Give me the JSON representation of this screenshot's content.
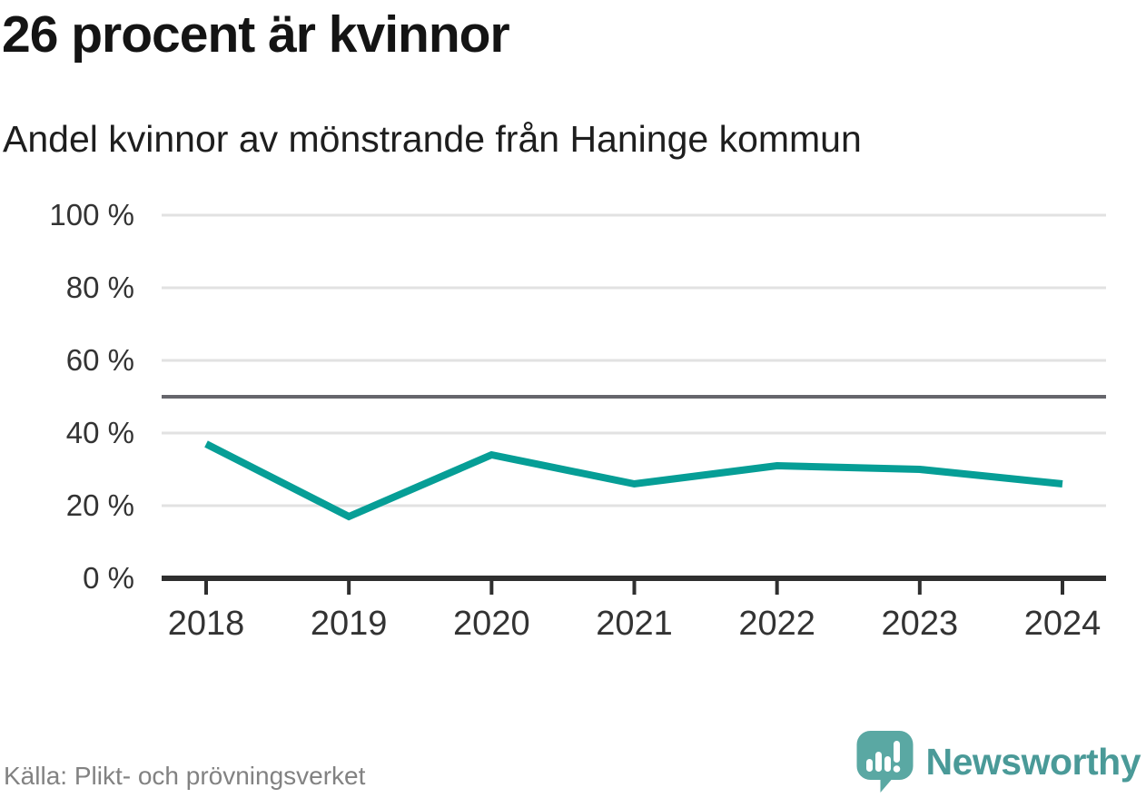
{
  "header": {
    "title": "26 procent är kvinnor",
    "subtitle": "Andel kvinnor av mönstrande från Haninge kommun"
  },
  "chart_data": {
    "type": "line",
    "title": "26 procent är kvinnor",
    "subtitle": "Andel kvinnor av mönstrande från Haninge kommun",
    "categories": [
      "2018",
      "2019",
      "2020",
      "2021",
      "2022",
      "2023",
      "2024"
    ],
    "series": [
      {
        "name": "Andel kvinnor av mönstrande",
        "color": "#069e96",
        "values": [
          37,
          17,
          34,
          26,
          31,
          30,
          26
        ]
      }
    ],
    "unit": "%",
    "xlabel": "",
    "ylabel": "",
    "ylim": [
      0,
      100
    ],
    "yticks": [
      0,
      20,
      40,
      60,
      80,
      100
    ],
    "ytick_labels": [
      "0 %",
      "20 %",
      "40 %",
      "60 %",
      "80 %",
      "100 %"
    ],
    "reference_line": {
      "value": 50,
      "color": "#66666c"
    },
    "grid": true,
    "legend": "none"
  },
  "footer": {
    "source": "Källa: Plikt- och prövningsverket",
    "brand_name": "Newsworthy"
  },
  "colors": {
    "line": "#069e96",
    "grid": "#e2e2e2",
    "axis": "#2f2f2f",
    "tick_label": "#333333",
    "reference": "#66666c",
    "source_text": "#828282",
    "brand_teal": "#4a9a98",
    "logo_icon": "#5aa8a3"
  }
}
